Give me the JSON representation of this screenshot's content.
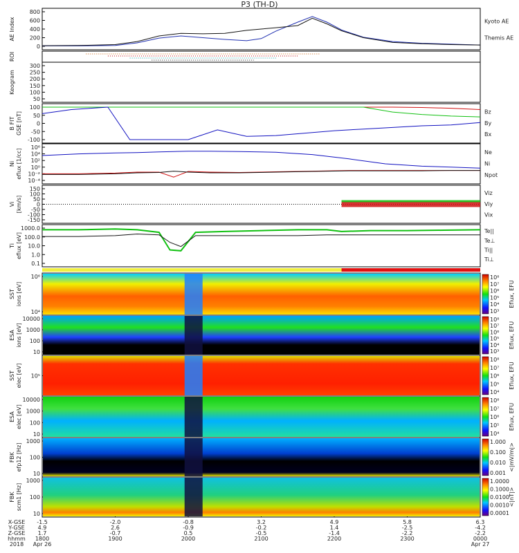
{
  "title": "P3 (TH-D)",
  "panels": [
    {
      "id": "ae",
      "ylabel": "AE Index",
      "unit": "",
      "ticks": [
        "800",
        "600",
        "400",
        "200",
        "0"
      ],
      "legend": [
        {
          "text": "Kyoto AE",
          "color": "#1f2fb0"
        },
        {
          "text": "Themis AE",
          "color": "#111111"
        }
      ]
    },
    {
      "id": "roi",
      "ylabel": "ROI",
      "unit": "",
      "ticks": [],
      "legend": []
    },
    {
      "id": "keogram",
      "ylabel": "Keogram",
      "unit": "",
      "ticks": [
        "300",
        "250",
        "200",
        "150",
        "100",
        "50"
      ],
      "legend": []
    },
    {
      "id": "bfit",
      "ylabel": "B FIT",
      "unit": "GSE [nT]",
      "ticks": [
        "100",
        "50",
        "0",
        "-50",
        "-100"
      ],
      "legend": [
        {
          "text": "Bz",
          "color": "#d01010"
        },
        {
          "text": "By",
          "color": "#10c010"
        },
        {
          "text": "Bx",
          "color": "#1010c0"
        }
      ]
    },
    {
      "id": "ni",
      "ylabel": "Ni",
      "unit": "eflux [1/cc]",
      "ticks": [
        "10⁶",
        "10⁴",
        "10²",
        "10⁰",
        "10⁻²",
        "10⁻⁴"
      ],
      "legend": [
        {
          "text": "Ne",
          "color": "#d01010"
        },
        {
          "text": "Ni",
          "color": "#111111"
        },
        {
          "text": "Npot",
          "color": "#1010c0"
        }
      ]
    },
    {
      "id": "vi",
      "ylabel": "Vi",
      "unit": "[km/s]",
      "ticks": [
        "150",
        "100",
        "50",
        "0",
        "-50",
        "-100",
        "-150"
      ],
      "legend": [
        {
          "text": "Viz",
          "color": "#d01010"
        },
        {
          "text": "Viy",
          "color": "#10c010"
        },
        {
          "text": "Vix",
          "color": "#1010c0"
        }
      ]
    },
    {
      "id": "ti",
      "ylabel": "Ti",
      "unit": "eflux [eV]",
      "ticks": [
        "1000.0",
        "100.0",
        "10.0",
        "1.0",
        "0.1"
      ],
      "legend": [
        {
          "text": "Te||",
          "color": "#111111"
        },
        {
          "text": "Te⊥",
          "color": "#d01010"
        },
        {
          "text": "Ti||",
          "color": "#10c010"
        },
        {
          "text": "Ti⊥",
          "color": "#1010c0"
        }
      ]
    },
    {
      "id": "sst_i",
      "ylabel": "SST",
      "unit": "ions [eV]",
      "ticks": [
        "10⁶",
        "10⁴"
      ],
      "colorbar": {
        "ticks": [
          "10⁸",
          "10⁷",
          "10⁶",
          "10⁵",
          "10⁴",
          "10³"
        ],
        "label": "Eflux, EFU"
      }
    },
    {
      "id": "esa_i",
      "ylabel": "ESA",
      "unit": "ions [eV]",
      "ticks": [
        "10000",
        "1000",
        "100",
        "10"
      ],
      "colorbar": {
        "ticks": [
          "10⁸",
          "10⁷",
          "10⁶",
          "10⁵",
          "10⁴",
          "10³"
        ],
        "label": "Eflux, EFU"
      }
    },
    {
      "id": "sst_e",
      "ylabel": "SST",
      "unit": "elec [eV]",
      "ticks": [
        "10⁵"
      ],
      "colorbar": {
        "ticks": [
          "10⁸",
          "10⁷",
          "10⁶",
          "10⁵",
          "10⁴"
        ],
        "label": "Eflux, EFU"
      }
    },
    {
      "id": "esa_e",
      "ylabel": "ESA",
      "unit": "elec [eV]",
      "ticks": [
        "10000",
        "1000",
        "100",
        "10"
      ],
      "colorbar": {
        "ticks": [
          "10⁸",
          "10⁷",
          "10⁶",
          "10⁵",
          "10⁴"
        ],
        "label": "Eflux, EFU"
      }
    },
    {
      "id": "fbk_e",
      "ylabel": "FBK",
      "unit": "efp12 [Hz]",
      "ticks": [
        "1000",
        "100",
        "10"
      ],
      "colorbar": {
        "ticks": [
          "1.000",
          "0.100",
          "0.010",
          "0.001"
        ],
        "label": "<|mV/m|>"
      }
    },
    {
      "id": "fbk_b",
      "ylabel": "FBK",
      "unit": "scm1 [Hz]",
      "ticks": [
        "1000",
        "100",
        "10"
      ],
      "colorbar": {
        "ticks": [
          "1.0000",
          "0.1000",
          "0.0100",
          "0.0010",
          "0.0001"
        ],
        "label": "<|nT|>"
      }
    }
  ],
  "axis": {
    "rows": [
      "X-GSE",
      "Y-GSE",
      "Z-GSE",
      "hhmm",
      "2018"
    ],
    "cols": [
      [
        "-1.5",
        "4.9",
        "1.7",
        "1800",
        "Apr 26"
      ],
      [
        "-2.0",
        "2.6",
        "-0.7",
        "1900",
        ""
      ],
      [
        "-0.8",
        "-0.9",
        "0.5",
        "2000",
        ""
      ],
      [
        "3.2",
        "-0.2",
        "-0.5",
        "2100",
        ""
      ],
      [
        "4.9",
        "1.4",
        "-1.4",
        "2200",
        ""
      ],
      [
        "5.8",
        "-2.5",
        "-2.2",
        "2300",
        ""
      ],
      [
        "6.3",
        "-4.2",
        "-2.2",
        "0000",
        "Apr 27"
      ]
    ]
  },
  "chart_data": {
    "type": "line",
    "title": "P3 (TH-D)",
    "x_hours": [
      18,
      19,
      20,
      21,
      22,
      23,
      24
    ],
    "x_labels": [
      "1800",
      "1900",
      "2000",
      "2100",
      "2200",
      "2300",
      "0000"
    ],
    "ae": {
      "ylim": [
        0,
        800
      ],
      "x": [
        18.0,
        18.5,
        19.0,
        19.3,
        19.6,
        19.9,
        20.2,
        20.5,
        20.8,
        21.0,
        21.2,
        21.5,
        21.7,
        21.9,
        22.1,
        22.4,
        22.8,
        23.2,
        23.6,
        24.0
      ],
      "kyoto": [
        10,
        10,
        20,
        80,
        190,
        240,
        200,
        160,
        130,
        180,
        350,
        560,
        690,
        560,
        380,
        210,
        110,
        70,
        50,
        30
      ],
      "themis": [
        15,
        20,
        40,
        110,
        240,
        300,
        290,
        300,
        370,
        400,
        430,
        480,
        650,
        520,
        360,
        200,
        90,
        60,
        40,
        30
      ]
    },
    "bfit": {
      "ylim": [
        -100,
        100
      ],
      "x": [
        18.0,
        18.4,
        18.9,
        19.2,
        19.6,
        20.0,
        20.4,
        20.8,
        21.2,
        21.6,
        22.0,
        22.4,
        22.8,
        23.2,
        23.6,
        24.0
      ],
      "bz": [
        100,
        100,
        100,
        100,
        100,
        100,
        100,
        100,
        100,
        100,
        100,
        100,
        100,
        98,
        93,
        85
      ],
      "by": [
        100,
        100,
        100,
        100,
        100,
        100,
        100,
        100,
        100,
        100,
        100,
        100,
        70,
        55,
        45,
        40
      ],
      "bx": [
        60,
        85,
        100,
        -100,
        -100,
        -100,
        -40,
        -80,
        -75,
        -60,
        -45,
        -35,
        -25,
        -15,
        -10,
        5
      ]
    },
    "ni_log": {
      "ylim": [
        -4,
        6
      ],
      "x": [
        18.0,
        18.5,
        19.0,
        19.3,
        19.6,
        19.8,
        20.0,
        20.3,
        20.7,
        21.2,
        21.7,
        22.2,
        22.7,
        23.2,
        23.6,
        24.0
      ],
      "npot": [
        3.5,
        4,
        4.3,
        4.4,
        4.6,
        4.7,
        4.8,
        4.8,
        4.7,
        4.5,
        3.8,
        2.5,
        1,
        0.3,
        0,
        -0.3
      ],
      "ne": [
        -2,
        -2,
        -1.8,
        -1.5,
        -1.5,
        -3,
        -1.3,
        -1.5,
        -1.6,
        -1.4,
        -1.2,
        -1.0,
        -1.0,
        -1.0,
        -1.0,
        -1.0
      ],
      "ni": [
        -2.2,
        -2.2,
        -2,
        -1.7,
        -1.6,
        -1.2,
        -1.5,
        -1.7,
        -1.7,
        -1.5,
        -1.3,
        -1.1,
        -1.1,
        -1.1,
        -1.0,
        -1.0
      ]
    },
    "ti_log": {
      "ylim": [
        -1,
        3.2
      ],
      "x": [
        18.0,
        18.5,
        19.0,
        19.3,
        19.6,
        19.75,
        19.9,
        20.1,
        20.5,
        21.0,
        21.5,
        21.9,
        22.1,
        22.5,
        23.0,
        23.5,
        24.0
      ],
      "ti_par": [
        3,
        3,
        3.1,
        3.0,
        2.7,
        0.6,
        0.5,
        2.7,
        2.8,
        2.9,
        3.0,
        3.0,
        2.8,
        2.9,
        2.9,
        2.95,
        3.0
      ],
      "te_par": [
        2.2,
        2.2,
        2.3,
        2.5,
        2.4,
        1.5,
        1.0,
        2.3,
        2.3,
        2.3,
        2.3,
        2.4,
        2.4,
        2.4,
        2.4,
        2.4,
        2.4
      ]
    },
    "colorbar_spectra": {
      "label": "Eflux, EFU",
      "scale": "log"
    }
  }
}
